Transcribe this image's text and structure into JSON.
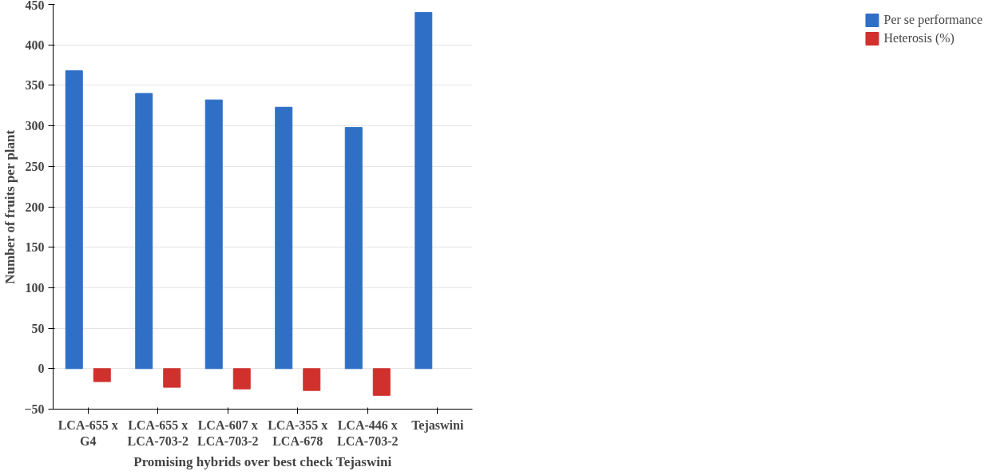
{
  "chart_data": {
    "type": "bar",
    "xlabel": "Promising hybrids over best check Tejaswini",
    "ylabel": "Number of fruits per plant",
    "categories": [
      "LCA-655 x G4",
      "LCA-655 x LCA-703-2",
      "LCA-607 x LCA-703-2",
      "LCA-355 x LCA-678",
      "LCA-446 x LCA-703-2",
      "Tejaswini"
    ],
    "series": [
      {
        "name": "Per se performance",
        "color": "#2f6fc6",
        "values": [
          368,
          340,
          332,
          323,
          298,
          440
        ]
      },
      {
        "name": "Heterosis (%)",
        "color": "#d0312d",
        "values": [
          -16,
          -23,
          -25,
          -27,
          -33,
          null
        ]
      }
    ],
    "ylim": [
      -50,
      450
    ],
    "yticks": [
      -50,
      0,
      50,
      100,
      150,
      200,
      250,
      300,
      350,
      400,
      450
    ],
    "grid": "y",
    "legend": "right"
  }
}
